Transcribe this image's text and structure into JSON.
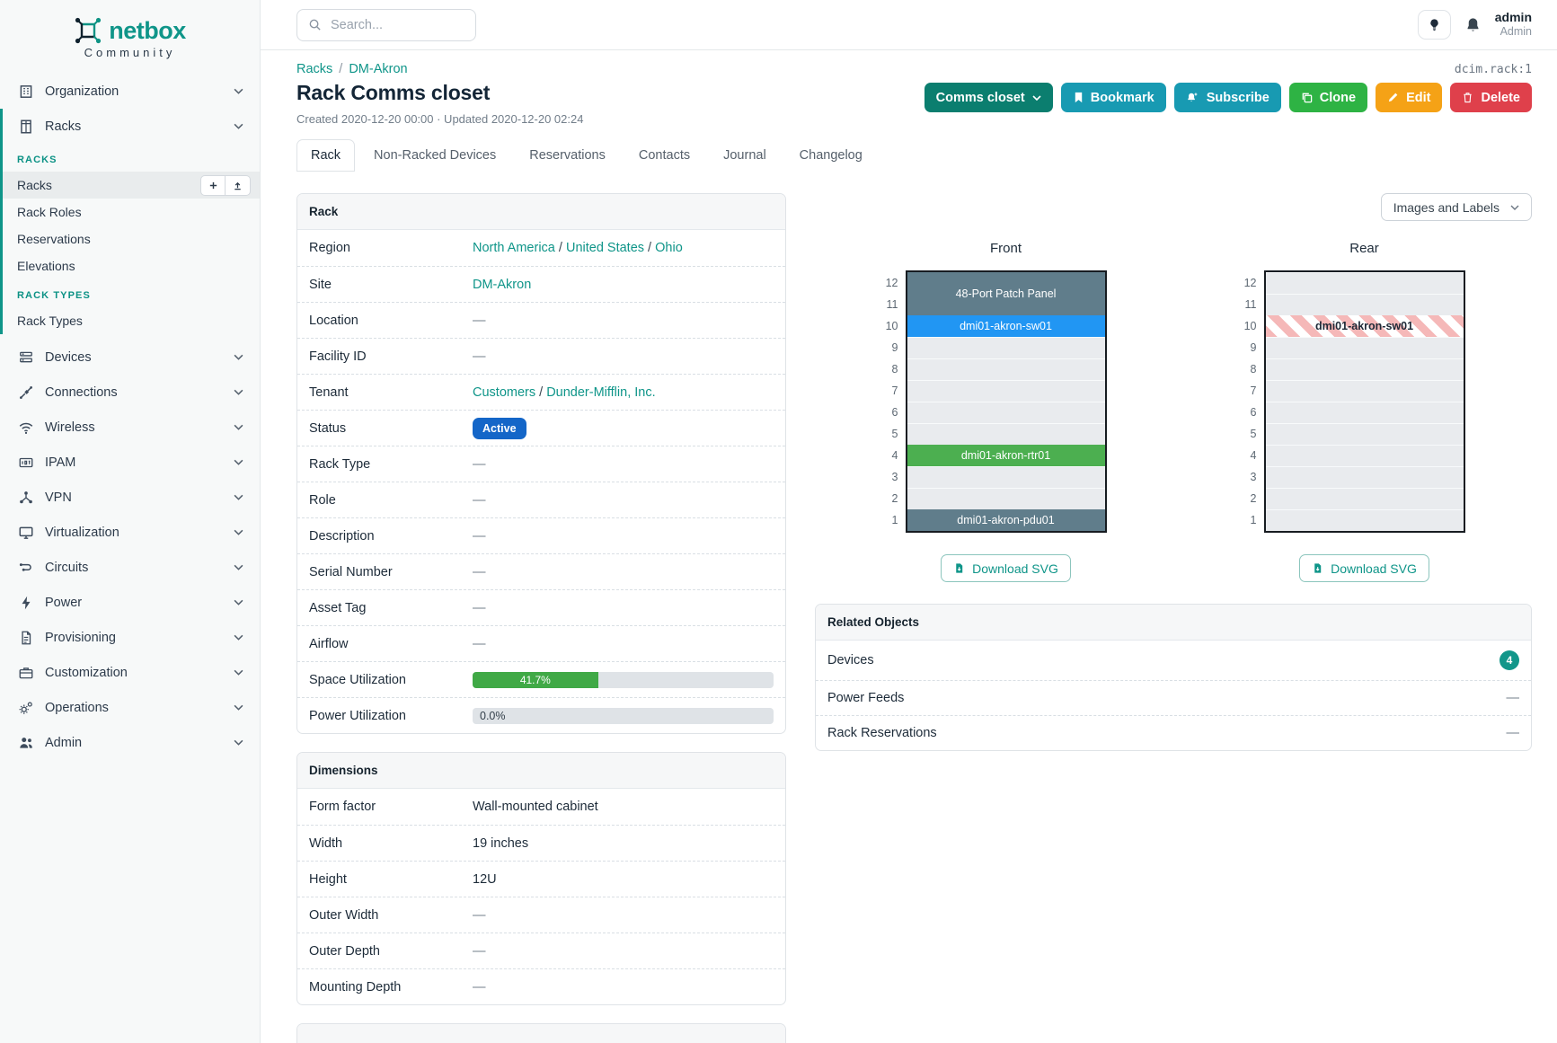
{
  "colors": {
    "brand_teal": "#0f9589",
    "sidebar_section": "#0c9285",
    "btn_view_teal": "#0b7e6f",
    "btn_info_cyan": "#189ab2",
    "btn_success_green": "#2eb344",
    "btn_warning_orange": "#f5a216",
    "btn_danger_red": "#df404b",
    "status_active_blue": "#1466c8",
    "utilization_green": "#40a946",
    "count_badge_teal": "#12968a",
    "ghost_stripe_pink": "#f5b8b8"
  },
  "sidebar": {
    "logo_text": "netbox",
    "logo_tagline": "Community",
    "organization": {
      "label": "Organization"
    },
    "racks_parent": {
      "label": "Racks"
    },
    "rack_groups": [
      {
        "header": "RACKS",
        "links": [
          "Racks",
          "Rack Roles",
          "Reservations",
          "Elevations"
        ]
      },
      {
        "header": "RACK TYPES",
        "links": [
          "Rack Types"
        ]
      }
    ],
    "items": [
      "Devices",
      "Connections",
      "Wireless",
      "IPAM",
      "VPN",
      "Virtualization",
      "Circuits",
      "Power",
      "Provisioning",
      "Customization",
      "Operations",
      "Admin"
    ]
  },
  "topbar": {
    "search_placeholder": "Search...",
    "username": "admin",
    "role": "Admin"
  },
  "page": {
    "object_type_id": "dcim.rack:1",
    "breadcrumb": [
      "Racks",
      "DM-Akron"
    ],
    "breadcrumb_separator": "/",
    "title": "Rack Comms closet",
    "meta": "Created 2020-12-20 00:00 · Updated 2020-12-20 02:24"
  },
  "actions": {
    "view_dropdown": "Comms closet",
    "bookmark": "Bookmark",
    "subscribe": "Subscribe",
    "clone": "Clone",
    "edit": "Edit",
    "delete": "Delete"
  },
  "tabs": [
    "Rack",
    "Non-Racked Devices",
    "Reservations",
    "Contacts",
    "Journal",
    "Changelog"
  ],
  "misc": {
    "link_separator": " / ",
    "empty_value": "—"
  },
  "rack_panel": {
    "title": "Rack",
    "region": {
      "label": "Region",
      "links": [
        "North America",
        "United States",
        "Ohio"
      ]
    },
    "site": {
      "label": "Site",
      "link": "DM-Akron"
    },
    "location": {
      "label": "Location",
      "value": "—"
    },
    "facility_id": {
      "label": "Facility ID",
      "value": "—"
    },
    "tenant": {
      "label": "Tenant",
      "links": [
        "Customers",
        "Dunder-Mifflin, Inc."
      ]
    },
    "status": {
      "label": "Status",
      "badge": "Active"
    },
    "rack_type": {
      "label": "Rack Type",
      "value": "—"
    },
    "role": {
      "label": "Role",
      "value": "—"
    },
    "description": {
      "label": "Description",
      "value": "—"
    },
    "serial_number": {
      "label": "Serial Number",
      "value": "—"
    },
    "asset_tag": {
      "label": "Asset Tag",
      "value": "—"
    },
    "airflow": {
      "label": "Airflow",
      "value": "—"
    },
    "space_utilization": {
      "label": "Space Utilization",
      "percent": 41.7,
      "display": "41.7%"
    },
    "power_utilization": {
      "label": "Power Utilization",
      "percent": 0.0,
      "display": "0.0%"
    }
  },
  "dimensions_panel": {
    "title": "Dimensions",
    "rows": [
      {
        "label": "Form factor",
        "value": "Wall-mounted cabinet"
      },
      {
        "label": "Width",
        "value": "19 inches"
      },
      {
        "label": "Height",
        "value": "12U"
      },
      {
        "label": "Outer Width",
        "value": "—"
      },
      {
        "label": "Outer Depth",
        "value": "—"
      },
      {
        "label": "Mounting Depth",
        "value": "—"
      }
    ]
  },
  "elevations": {
    "view_selector": "Images and Labels",
    "download_label": "Download SVG",
    "rack_height_u": 12,
    "front": {
      "title": "Front",
      "units": [
        {
          "top_u": 12,
          "span": 2,
          "device": "48-Port Patch Panel",
          "color": "#607d8b",
          "text_color": "#ffffff"
        },
        {
          "top_u": 10,
          "span": 1,
          "device": "dmi01-akron-sw01",
          "color": "#2196f3",
          "text_color": "#ffffff"
        },
        {
          "top_u": 9,
          "span": 1
        },
        {
          "top_u": 8,
          "span": 1
        },
        {
          "top_u": 7,
          "span": 1
        },
        {
          "top_u": 6,
          "span": 1
        },
        {
          "top_u": 5,
          "span": 1
        },
        {
          "top_u": 4,
          "span": 1,
          "device": "dmi01-akron-rtr01",
          "color": "#4caf50",
          "text_color": "#ffffff"
        },
        {
          "top_u": 3,
          "span": 1
        },
        {
          "top_u": 2,
          "span": 1
        },
        {
          "top_u": 1,
          "span": 1,
          "device": "dmi01-akron-pdu01",
          "color": "#607d8b",
          "text_color": "#ffffff"
        }
      ]
    },
    "rear": {
      "title": "Rear",
      "units": [
        {
          "top_u": 12,
          "span": 1
        },
        {
          "top_u": 11,
          "span": 1
        },
        {
          "top_u": 10,
          "span": 1,
          "device": "dmi01-akron-sw01",
          "ghost": true,
          "text_color": "#1f2937"
        },
        {
          "top_u": 9,
          "span": 1
        },
        {
          "top_u": 8,
          "span": 1
        },
        {
          "top_u": 7,
          "span": 1
        },
        {
          "top_u": 6,
          "span": 1
        },
        {
          "top_u": 5,
          "span": 1
        },
        {
          "top_u": 4,
          "span": 1
        },
        {
          "top_u": 3,
          "span": 1
        },
        {
          "top_u": 2,
          "span": 1
        },
        {
          "top_u": 1,
          "span": 1
        }
      ]
    }
  },
  "related_objects": {
    "title": "Related Objects",
    "rows": [
      {
        "label": "Devices",
        "count": "4"
      },
      {
        "label": "Power Feeds",
        "value": "—"
      },
      {
        "label": "Rack Reservations",
        "value": "—"
      }
    ]
  }
}
